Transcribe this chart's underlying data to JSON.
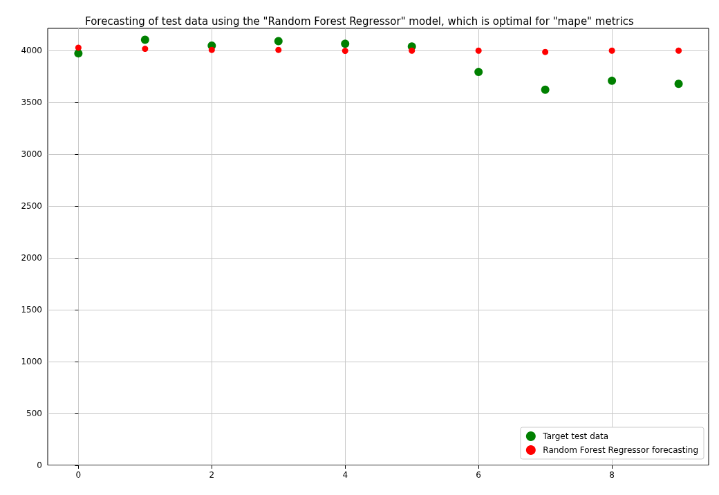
{
  "chart_data": {
    "type": "scatter",
    "title": "Forecasting of test data using the \"Random Forest Regressor\" model, which is optimal for \"mape\" metrics",
    "x": [
      0,
      1,
      2,
      3,
      4,
      5,
      6,
      7,
      8,
      9
    ],
    "series": [
      {
        "name": "Target test data",
        "color": "#008000",
        "values": [
          3974,
          4105,
          4049,
          4092,
          4066,
          4040,
          3794,
          3623,
          3709,
          3680
        ]
      },
      {
        "name": "Random Forest Regressor forecasting",
        "color": "#ff0000",
        "values": [
          4029,
          4018,
          4007,
          4007,
          3998,
          4000,
          4000,
          3987,
          4000,
          4000
        ]
      }
    ],
    "xlim": [
      -0.46,
      9.45
    ],
    "xticks": [
      0,
      2,
      4,
      6,
      8
    ],
    "ylim": [
      0,
      4215
    ],
    "yticks": [
      0,
      500,
      1000,
      1500,
      2000,
      2500,
      3000,
      3500,
      4000
    ],
    "grid": true,
    "legend": "bottom right",
    "marker": "circle"
  }
}
